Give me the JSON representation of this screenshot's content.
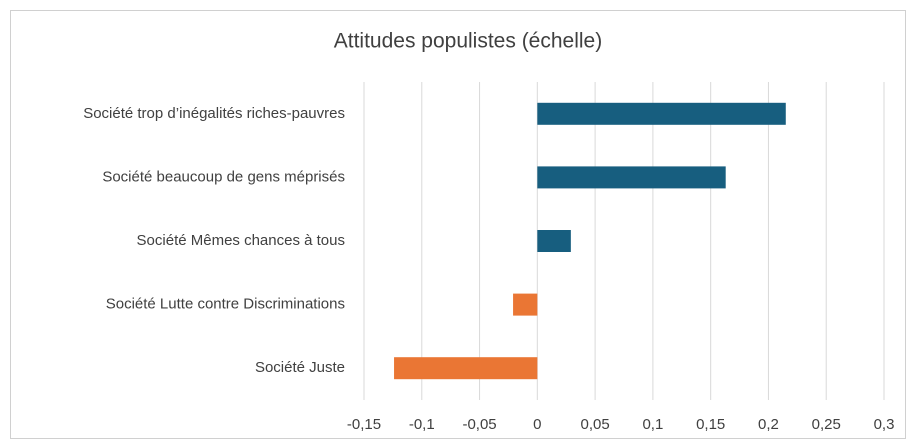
{
  "chart_data": {
    "type": "bar",
    "orientation": "horizontal",
    "title": "Attitudes populistes (échelle)",
    "categories": [
      "Société trop d’inégalités riches-pauvres",
      "Société beaucoup de gens méprisés",
      "Société Mêmes chances à tous",
      "Société Lutte contre Discriminations",
      "Société Juste"
    ],
    "values": [
      0.215,
      0.163,
      0.029,
      -0.021,
      -0.124
    ],
    "colors": [
      "#175e7f",
      "#175e7f",
      "#175e7f",
      "#ea7634",
      "#ea7634"
    ],
    "xlim": [
      -0.15,
      0.3
    ],
    "xticks": [
      {
        "value": -0.15,
        "label": "-0,15"
      },
      {
        "value": -0.1,
        "label": "-0,1"
      },
      {
        "value": -0.05,
        "label": "-0,05"
      },
      0,
      {
        "value": 0.05,
        "label": "0,05"
      },
      {
        "value": 0.1,
        "label": "0,1"
      },
      {
        "value": 0.15,
        "label": "0,15"
      },
      {
        "value": 0.2,
        "label": "0,2"
      },
      {
        "value": 0.25,
        "label": "0,25"
      },
      {
        "value": 0.3,
        "label": "0,3"
      }
    ],
    "grid": true
  }
}
